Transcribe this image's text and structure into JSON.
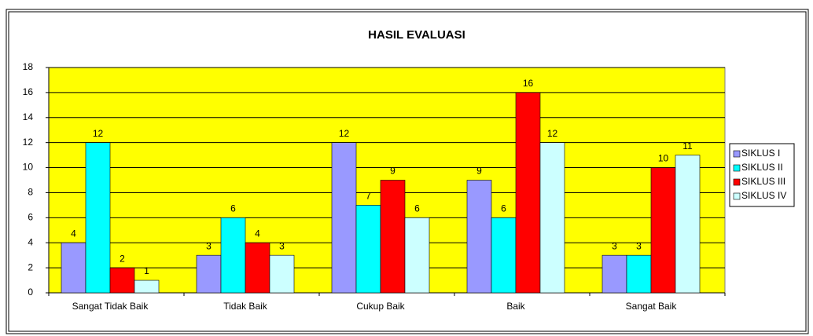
{
  "chart_data": {
    "type": "bar",
    "title": "HASIL EVALUASI",
    "categories": [
      "Sangat Tidak Baik",
      "Tidak Baik",
      "Cukup Baik",
      "Baik",
      "Sangat Baik"
    ],
    "series": [
      {
        "name": "SIKLUS I",
        "color": "#9999ff",
        "values": [
          4,
          3,
          12,
          9,
          3
        ]
      },
      {
        "name": "SIKLUS II",
        "color": "#00ffff",
        "values": [
          12,
          6,
          7,
          6,
          3
        ]
      },
      {
        "name": "SIKLUS III",
        "color": "#ff0000",
        "values": [
          2,
          4,
          9,
          16,
          10
        ]
      },
      {
        "name": "SIKLUS IV",
        "color": "#ccffff",
        "values": [
          1,
          3,
          6,
          12,
          11
        ]
      }
    ],
    "ylim": [
      0,
      18
    ],
    "yticks": [
      0,
      2,
      4,
      6,
      8,
      10,
      12,
      14,
      16,
      18
    ],
    "grid": true,
    "plot_background": "#ffff00",
    "legend": "right"
  }
}
